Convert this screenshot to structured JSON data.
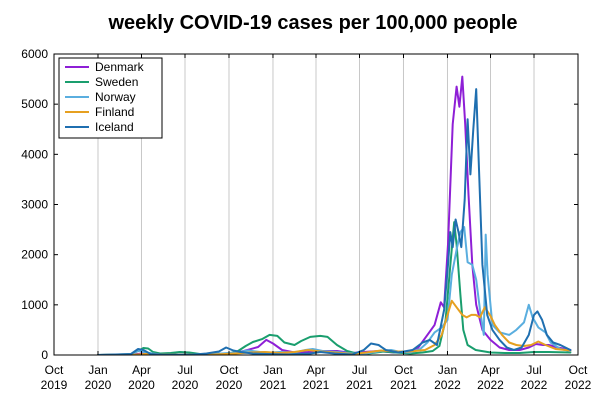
{
  "chart_data": {
    "type": "line",
    "title": "weekly COVID-19 cases per 100,000 people",
    "xlabel": "",
    "ylabel": "",
    "grid": "vertical",
    "legend_position": "top-left",
    "x_ticks": [
      {
        "date": "2019-10-01",
        "line1": "Oct",
        "line2": "2019"
      },
      {
        "date": "2020-01-01",
        "line1": "Jan",
        "line2": "2020"
      },
      {
        "date": "2020-04-01",
        "line1": "Apr",
        "line2": "2020"
      },
      {
        "date": "2020-07-01",
        "line1": "Jul",
        "line2": "2020"
      },
      {
        "date": "2020-10-01",
        "line1": "Oct",
        "line2": "2020"
      },
      {
        "date": "2021-01-01",
        "line1": "Jan",
        "line2": "2021"
      },
      {
        "date": "2021-04-01",
        "line1": "Apr",
        "line2": "2021"
      },
      {
        "date": "2021-07-01",
        "line1": "Jul",
        "line2": "2021"
      },
      {
        "date": "2021-10-01",
        "line1": "Oct",
        "line2": "2021"
      },
      {
        "date": "2022-01-01",
        "line1": "Jan",
        "line2": "2022"
      },
      {
        "date": "2022-04-01",
        "line1": "Apr",
        "line2": "2022"
      },
      {
        "date": "2022-07-01",
        "line1": "Jul",
        "line2": "2022"
      },
      {
        "date": "2022-10-01",
        "line1": "Oct",
        "line2": "2022"
      }
    ],
    "xlim": [
      "2019-10-01",
      "2022-10-01"
    ],
    "y_ticks": [
      0,
      1000,
      2000,
      3000,
      4000,
      5000,
      6000
    ],
    "ylim": [
      0,
      6000
    ],
    "series": [
      {
        "name": "Denmark",
        "color": "#8e1fd6",
        "points": [
          [
            "2020-01-01",
            0
          ],
          [
            "2020-03-10",
            5
          ],
          [
            "2020-04-01",
            30
          ],
          [
            "2020-05-15",
            10
          ],
          [
            "2020-07-01",
            5
          ],
          [
            "2020-09-01",
            20
          ],
          [
            "2020-10-01",
            30
          ],
          [
            "2020-11-01",
            80
          ],
          [
            "2020-12-01",
            160
          ],
          [
            "2020-12-18",
            300
          ],
          [
            "2021-01-01",
            230
          ],
          [
            "2021-01-20",
            100
          ],
          [
            "2021-02-15",
            50
          ],
          [
            "2021-03-15",
            60
          ],
          [
            "2021-04-15",
            80
          ],
          [
            "2021-05-15",
            80
          ],
          [
            "2021-06-15",
            40
          ],
          [
            "2021-07-10",
            60
          ],
          [
            "2021-08-10",
            80
          ],
          [
            "2021-09-10",
            50
          ],
          [
            "2021-10-10",
            60
          ],
          [
            "2021-11-01",
            150
          ],
          [
            "2021-11-20",
            400
          ],
          [
            "2021-12-05",
            600
          ],
          [
            "2021-12-18",
            1050
          ],
          [
            "2021-12-25",
            950
          ],
          [
            "2022-01-02",
            2200
          ],
          [
            "2022-01-12",
            4600
          ],
          [
            "2022-01-20",
            5350
          ],
          [
            "2022-01-26",
            4950
          ],
          [
            "2022-02-01",
            5550
          ],
          [
            "2022-02-07",
            4600
          ],
          [
            "2022-02-14",
            3200
          ],
          [
            "2022-02-22",
            1800
          ],
          [
            "2022-03-02",
            1000
          ],
          [
            "2022-03-15",
            500
          ],
          [
            "2022-04-01",
            300
          ],
          [
            "2022-04-20",
            150
          ],
          [
            "2022-05-10",
            100
          ],
          [
            "2022-06-01",
            100
          ],
          [
            "2022-06-20",
            150
          ],
          [
            "2022-07-05",
            220
          ],
          [
            "2022-07-20",
            200
          ],
          [
            "2022-08-01",
            200
          ],
          [
            "2022-08-20",
            150
          ],
          [
            "2022-09-15",
            100
          ]
        ]
      },
      {
        "name": "Sweden",
        "color": "#1a9e6e",
        "points": [
          [
            "2020-01-01",
            0
          ],
          [
            "2020-03-10",
            15
          ],
          [
            "2020-03-25",
            80
          ],
          [
            "2020-04-05",
            140
          ],
          [
            "2020-04-15",
            130
          ],
          [
            "2020-04-25",
            60
          ],
          [
            "2020-05-10",
            30
          ],
          [
            "2020-06-01",
            40
          ],
          [
            "2020-06-20",
            60
          ],
          [
            "2020-07-10",
            50
          ],
          [
            "2020-08-01",
            20
          ],
          [
            "2020-09-01",
            20
          ],
          [
            "2020-10-01",
            30
          ],
          [
            "2020-10-20",
            80
          ],
          [
            "2020-11-05",
            180
          ],
          [
            "2020-11-20",
            260
          ],
          [
            "2020-12-10",
            320
          ],
          [
            "2020-12-25",
            400
          ],
          [
            "2021-01-10",
            380
          ],
          [
            "2021-01-25",
            250
          ],
          [
            "2021-02-15",
            200
          ],
          [
            "2021-03-01",
            280
          ],
          [
            "2021-03-20",
            360
          ],
          [
            "2021-04-10",
            380
          ],
          [
            "2021-04-25",
            360
          ],
          [
            "2021-05-15",
            200
          ],
          [
            "2021-06-05",
            80
          ],
          [
            "2021-06-25",
            30
          ],
          [
            "2021-07-20",
            30
          ],
          [
            "2021-08-20",
            70
          ],
          [
            "2021-09-15",
            50
          ],
          [
            "2021-10-15",
            30
          ],
          [
            "2021-11-10",
            50
          ],
          [
            "2021-12-01",
            80
          ],
          [
            "2021-12-15",
            180
          ],
          [
            "2021-12-28",
            700
          ],
          [
            "2022-01-08",
            1900
          ],
          [
            "2022-01-15",
            2650
          ],
          [
            "2022-01-20",
            2200
          ],
          [
            "2022-01-28",
            1200
          ],
          [
            "2022-02-03",
            500
          ],
          [
            "2022-02-12",
            200
          ],
          [
            "2022-03-01",
            100
          ],
          [
            "2022-04-01",
            50
          ],
          [
            "2022-05-01",
            40
          ],
          [
            "2022-06-01",
            40
          ],
          [
            "2022-07-01",
            60
          ],
          [
            "2022-08-01",
            60
          ],
          [
            "2022-09-15",
            50
          ]
        ]
      },
      {
        "name": "Norway",
        "color": "#5aaedf",
        "points": [
          [
            "2020-01-01",
            0
          ],
          [
            "2020-03-12",
            10
          ],
          [
            "2020-03-25",
            90
          ],
          [
            "2020-04-10",
            50
          ],
          [
            "2020-05-10",
            10
          ],
          [
            "2020-07-01",
            5
          ],
          [
            "2020-08-20",
            20
          ],
          [
            "2020-09-15",
            30
          ],
          [
            "2020-10-15",
            50
          ],
          [
            "2020-11-10",
            90
          ],
          [
            "2020-12-05",
            60
          ],
          [
            "2020-12-28",
            50
          ],
          [
            "2021-01-15",
            60
          ],
          [
            "2021-02-15",
            50
          ],
          [
            "2021-03-10",
            100
          ],
          [
            "2021-03-25",
            120
          ],
          [
            "2021-04-15",
            80
          ],
          [
            "2021-05-15",
            60
          ],
          [
            "2021-06-15",
            30
          ],
          [
            "2021-07-15",
            30
          ],
          [
            "2021-08-15",
            80
          ],
          [
            "2021-09-05",
            100
          ],
          [
            "2021-09-25",
            60
          ],
          [
            "2021-10-15",
            50
          ],
          [
            "2021-11-05",
            120
          ],
          [
            "2021-11-20",
            250
          ],
          [
            "2021-12-05",
            450
          ],
          [
            "2021-12-20",
            550
          ],
          [
            "2022-01-01",
            700
          ],
          [
            "2022-01-10",
            1600
          ],
          [
            "2022-01-20",
            2100
          ],
          [
            "2022-01-28",
            2450
          ],
          [
            "2022-02-05",
            2550
          ],
          [
            "2022-02-12",
            1850
          ],
          [
            "2022-02-22",
            1800
          ],
          [
            "2022-03-02",
            1500
          ],
          [
            "2022-03-10",
            900
          ],
          [
            "2022-03-18",
            400
          ],
          [
            "2022-03-22",
            2400
          ],
          [
            "2022-03-26",
            1600
          ],
          [
            "2022-04-05",
            600
          ],
          [
            "2022-04-20",
            450
          ],
          [
            "2022-05-10",
            400
          ],
          [
            "2022-05-25",
            500
          ],
          [
            "2022-06-10",
            650
          ],
          [
            "2022-06-20",
            1000
          ],
          [
            "2022-06-28",
            750
          ],
          [
            "2022-07-10",
            550
          ],
          [
            "2022-07-25",
            450
          ],
          [
            "2022-08-05",
            250
          ],
          [
            "2022-08-25",
            120
          ],
          [
            "2022-09-15",
            80
          ]
        ]
      },
      {
        "name": "Finland",
        "color": "#e6a020",
        "points": [
          [
            "2020-01-01",
            0
          ],
          [
            "2020-03-15",
            5
          ],
          [
            "2020-04-10",
            20
          ],
          [
            "2020-05-10",
            10
          ],
          [
            "2020-07-01",
            5
          ],
          [
            "2020-09-01",
            10
          ],
          [
            "2020-10-15",
            30
          ],
          [
            "2020-11-15",
            50
          ],
          [
            "2020-12-15",
            60
          ],
          [
            "2021-01-15",
            40
          ],
          [
            "2021-02-15",
            60
          ],
          [
            "2021-03-15",
            100
          ],
          [
            "2021-04-10",
            70
          ],
          [
            "2021-05-10",
            50
          ],
          [
            "2021-06-15",
            20
          ],
          [
            "2021-07-15",
            50
          ],
          [
            "2021-08-15",
            90
          ],
          [
            "2021-09-15",
            70
          ],
          [
            "2021-10-15",
            70
          ],
          [
            "2021-11-15",
            100
          ],
          [
            "2021-12-05",
            200
          ],
          [
            "2021-12-20",
            400
          ],
          [
            "2022-01-01",
            800
          ],
          [
            "2022-01-10",
            1080
          ],
          [
            "2022-01-20",
            950
          ],
          [
            "2022-02-01",
            800
          ],
          [
            "2022-02-10",
            750
          ],
          [
            "2022-02-20",
            800
          ],
          [
            "2022-03-01",
            800
          ],
          [
            "2022-03-10",
            750
          ],
          [
            "2022-03-20",
            950
          ],
          [
            "2022-04-01",
            780
          ],
          [
            "2022-04-10",
            600
          ],
          [
            "2022-04-25",
            400
          ],
          [
            "2022-05-10",
            250
          ],
          [
            "2022-05-25",
            200
          ],
          [
            "2022-06-10",
            180
          ],
          [
            "2022-06-25",
            200
          ],
          [
            "2022-07-10",
            270
          ],
          [
            "2022-07-25",
            200
          ],
          [
            "2022-08-15",
            120
          ],
          [
            "2022-09-15",
            90
          ]
        ]
      },
      {
        "name": "Iceland",
        "color": "#1f6fb0",
        "points": [
          [
            "2020-01-01",
            0
          ],
          [
            "2020-03-10",
            20
          ],
          [
            "2020-03-25",
            120
          ],
          [
            "2020-04-05",
            100
          ],
          [
            "2020-04-20",
            20
          ],
          [
            "2020-05-15",
            5
          ],
          [
            "2020-07-15",
            5
          ],
          [
            "2020-08-15",
            30
          ],
          [
            "2020-09-10",
            70
          ],
          [
            "2020-09-25",
            150
          ],
          [
            "2020-10-10",
            90
          ],
          [
            "2020-10-25",
            60
          ],
          [
            "2020-11-20",
            30
          ],
          [
            "2020-12-20",
            20
          ],
          [
            "2021-02-01",
            10
          ],
          [
            "2021-03-20",
            30
          ],
          [
            "2021-04-10",
            60
          ],
          [
            "2021-05-10",
            30
          ],
          [
            "2021-06-15",
            10
          ],
          [
            "2021-07-10",
            100
          ],
          [
            "2021-07-25",
            230
          ],
          [
            "2021-08-10",
            200
          ],
          [
            "2021-08-25",
            100
          ],
          [
            "2021-09-20",
            50
          ],
          [
            "2021-10-20",
            100
          ],
          [
            "2021-11-10",
            250
          ],
          [
            "2021-11-25",
            300
          ],
          [
            "2021-12-10",
            200
          ],
          [
            "2021-12-25",
            900
          ],
          [
            "2022-01-02",
            1800
          ],
          [
            "2022-01-07",
            2450
          ],
          [
            "2022-01-12",
            2150
          ],
          [
            "2022-01-18",
            2700
          ],
          [
            "2022-01-24",
            2450
          ],
          [
            "2022-01-30",
            2150
          ],
          [
            "2022-02-06",
            3100
          ],
          [
            "2022-02-12",
            4700
          ],
          [
            "2022-02-18",
            3600
          ],
          [
            "2022-02-24",
            4500
          ],
          [
            "2022-03-02",
            5300
          ],
          [
            "2022-03-08",
            3700
          ],
          [
            "2022-03-15",
            1800
          ],
          [
            "2022-03-25",
            800
          ],
          [
            "2022-04-05",
            500
          ],
          [
            "2022-04-20",
            300
          ],
          [
            "2022-05-05",
            150
          ],
          [
            "2022-05-20",
            100
          ],
          [
            "2022-06-05",
            150
          ],
          [
            "2022-06-20",
            400
          ],
          [
            "2022-07-01",
            800
          ],
          [
            "2022-07-08",
            870
          ],
          [
            "2022-07-18",
            700
          ],
          [
            "2022-07-28",
            400
          ],
          [
            "2022-08-10",
            250
          ],
          [
            "2022-08-25",
            200
          ],
          [
            "2022-09-15",
            100
          ]
        ]
      }
    ]
  }
}
